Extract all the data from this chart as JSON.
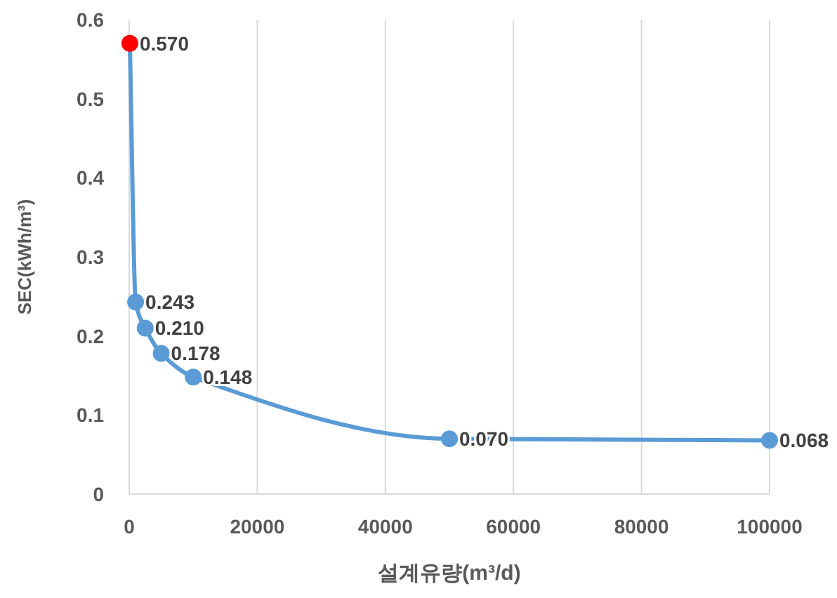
{
  "chart_data": {
    "type": "line",
    "xlabel": "설계유량(m³/d)",
    "ylabel": "SEC(kWh/m³)",
    "x": [
      100,
      1000,
      2500,
      5000,
      10000,
      50000,
      100000
    ],
    "series": [
      {
        "color": "#5b9bd5",
        "colors": [
          "#ff0000",
          "#5b9bd5",
          "#5b9bd5",
          "#5b9bd5",
          "#5b9bd5",
          "#5b9bd5",
          "#5b9bd5"
        ],
        "values": [
          0.57,
          0.243,
          0.21,
          0.178,
          0.148,
          0.07,
          0.068
        ],
        "value_labels": [
          "0.570",
          "0.243",
          "0.210",
          "0.178",
          "0.148",
          "0.070",
          "0.068"
        ]
      }
    ],
    "xlim": [
      0,
      100000
    ],
    "xticks": [
      0,
      20000,
      40000,
      60000,
      80000,
      100000
    ],
    "ylim": [
      0,
      0.6
    ],
    "yticks": [
      0,
      0.1,
      0.2,
      0.3,
      0.4,
      0.5,
      0.6
    ],
    "grid": "x",
    "marker": "circle",
    "line_style": "solid"
  }
}
